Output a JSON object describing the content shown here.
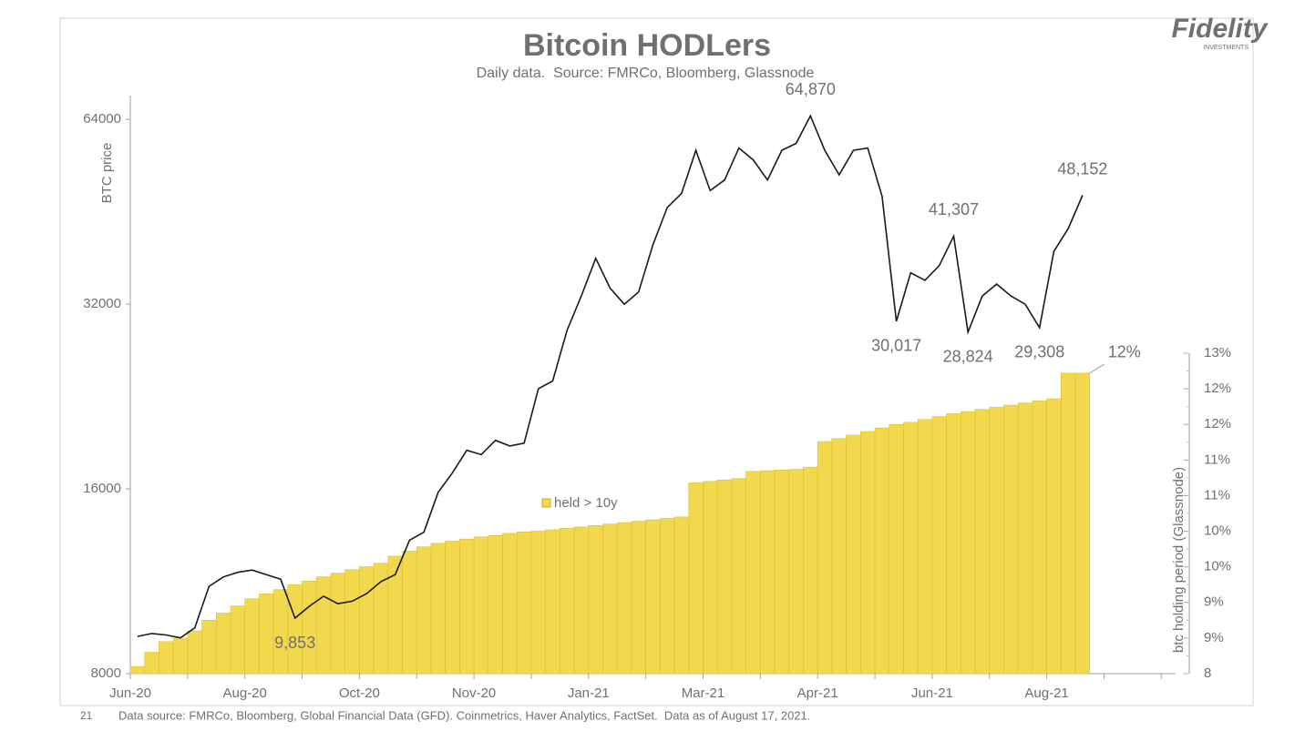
{
  "chart_data": {
    "type": "combo",
    "title": "Bitcoin HODLers",
    "subtitle": "Daily data.  Source: FMRCo, Bloomberg, Glassnode",
    "y_label": "BTC price",
    "y2_label": "btc holding period (Glassnode)",
    "categories": [
      "Jun-20",
      null,
      null,
      null,
      null,
      null,
      null,
      null,
      "Aug-20",
      null,
      null,
      null,
      null,
      null,
      null,
      null,
      "Oct-20",
      null,
      null,
      null,
      null,
      null,
      null,
      null,
      "Nov-20",
      null,
      null,
      null,
      null,
      null,
      null,
      null,
      "Jan-21",
      null,
      null,
      null,
      null,
      null,
      null,
      null,
      "Mar-21",
      null,
      null,
      null,
      null,
      null,
      null,
      null,
      "Apr-21",
      null,
      null,
      null,
      null,
      null,
      null,
      null,
      "Jun-21",
      null,
      null,
      null,
      null,
      null,
      null,
      null,
      "Aug-21",
      null,
      null,
      null,
      null,
      null,
      null,
      null,
      null
    ],
    "ylog": true,
    "ylim": [
      8000,
      70000
    ],
    "yticks": [
      8000,
      16000,
      32000,
      64000
    ],
    "y2lim": [
      8,
      12.5
    ],
    "y2ticks": [
      8,
      {
        "value": 8.5,
        "label": "9%"
      },
      {
        "value": 9,
        "label": "9%"
      },
      {
        "value": 9.5,
        "label": "10%"
      },
      {
        "value": 10,
        "label": "10%"
      },
      {
        "value": 10.5,
        "label": "11%"
      },
      {
        "value": 11,
        "label": "11%"
      },
      {
        "value": 11.5,
        "label": "12%"
      },
      {
        "value": 12,
        "label": "12%"
      },
      {
        "value": 12.5,
        "label": "13%"
      }
    ],
    "series": [
      {
        "type": "bar",
        "axis": "y2",
        "name": "held > 10y",
        "color": "#f2d84c",
        "values": [
          8.1,
          8.3,
          8.45,
          8.5,
          8.6,
          8.75,
          8.85,
          8.95,
          9.05,
          9.12,
          9.18,
          9.25,
          9.3,
          9.36,
          9.41,
          9.46,
          9.5,
          9.55,
          9.65,
          9.72,
          9.78,
          9.83,
          9.86,
          9.89,
          9.92,
          9.94,
          9.97,
          9.99,
          10.0,
          10.02,
          10.04,
          10.06,
          10.08,
          10.1,
          10.12,
          10.14,
          10.16,
          10.18,
          10.2,
          10.68,
          10.7,
          10.72,
          10.74,
          10.84,
          10.85,
          10.86,
          10.87,
          10.9,
          11.26,
          11.3,
          11.35,
          11.4,
          11.45,
          11.5,
          11.53,
          11.57,
          11.61,
          11.65,
          11.68,
          11.71,
          11.74,
          11.77,
          11.8,
          11.83,
          11.86,
          12.22,
          12.22,
          null,
          null,
          null,
          null,
          null,
          null
        ],
        "value_labels": [
          null,
          null,
          null,
          null,
          null,
          null,
          null,
          null,
          null,
          null,
          null,
          null,
          null,
          null,
          null,
          null,
          null,
          null,
          null,
          null,
          null,
          null,
          null,
          null,
          null,
          null,
          null,
          null,
          null,
          null,
          null,
          null,
          null,
          null,
          null,
          null,
          null,
          null,
          null,
          null,
          null,
          null,
          null,
          null,
          null,
          null,
          null,
          null,
          null,
          null,
          null,
          null,
          null,
          null,
          null,
          null,
          null,
          null,
          null,
          null,
          null,
          null,
          null,
          null,
          null,
          null,
          "12%",
          null,
          null,
          null,
          null,
          null,
          null
        ],
        "value_label_color": "#f0c419"
      },
      {
        "type": "line",
        "color": "#1a1a1a",
        "values": [
          9200,
          9300,
          9250,
          9150,
          9500,
          11100,
          11500,
          11700,
          11800,
          11600,
          11400,
          9853,
          10300,
          10700,
          10400,
          10500,
          10800,
          11300,
          11600,
          13200,
          13600,
          15800,
          17000,
          18500,
          18200,
          19200,
          18800,
          19000,
          23300,
          24000,
          29000,
          33000,
          38000,
          34000,
          32000,
          33500,
          40000,
          46000,
          48500,
          57000,
          49000,
          51000,
          57500,
          55000,
          51000,
          57000,
          58500,
          64870,
          57000,
          52000,
          57000,
          57500,
          48000,
          30017,
          36000,
          35000,
          37000,
          41307,
          28824,
          33000,
          34500,
          33000,
          32000,
          29308,
          39000,
          42500,
          48152,
          null,
          null,
          null,
          null,
          null,
          null
        ],
        "value_labels": [
          null,
          null,
          null,
          null,
          null,
          null,
          null,
          null,
          null,
          null,
          null,
          "9,853",
          null,
          null,
          null,
          null,
          null,
          null,
          null,
          null,
          null,
          null,
          null,
          null,
          null,
          null,
          null,
          null,
          null,
          null,
          null,
          null,
          null,
          null,
          null,
          null,
          null,
          null,
          null,
          null,
          null,
          null,
          null,
          null,
          null,
          null,
          null,
          "64,870",
          null,
          null,
          null,
          null,
          null,
          "30,017",
          null,
          null,
          null,
          "41,307",
          "28,824",
          null,
          null,
          null,
          null,
          "29,308",
          null,
          null,
          "48,152",
          null,
          null,
          null,
          null,
          null,
          null
        ]
      }
    ],
    "page_number": "21",
    "footnote": "Data source: FMRCo, Bloomberg, Global Financial Data (GFD). Coinmetrics, Haver Analytics, FactSet.  Data as of August 17, 2021.",
    "logo": {
      "name": "Fidelity",
      "sub": "INVESTMENTS"
    }
  }
}
